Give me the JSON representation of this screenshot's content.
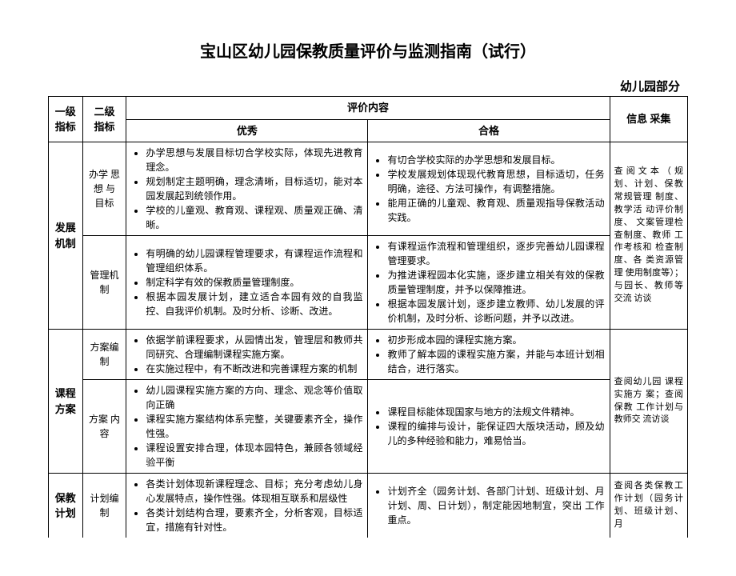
{
  "title": "宝山区幼儿园保教质量评价与监测指南（试行）",
  "subtitle": "幼儿园部分",
  "header": {
    "col1": "一级指标",
    "col2": "二级  指标",
    "eval": "评价内容",
    "excellent": "优秀",
    "pass": "合格",
    "info": "信息  采集"
  },
  "rows": {
    "r1": {
      "lvl1": "发展机制",
      "lvl2": "办学 思想 与 目标",
      "ex1": "办学思想与发展目标切合学校实际，体现先进教育理念。",
      "ex2": "规划制定主题明确，理念清晰，目标适切，能对本园发展起到统领作用。",
      "ex3": "学校的儿童观、教育观、课程观、质量观正确、清晰。",
      "pa1": "有切合学校实际的办学思想和发展目标。",
      "pa2": "学校发展规划体现现代教育思想，目标适切，任务明确，途径、方法可操作，有调整措施。",
      "pa3": "能用正确的儿童观、教育观、质量观指导保教活动实践。",
      "info": "查阅文本（规划、计划、保教常规管理 制度、教学活 动评价制度、 文案管理检 查制度、教师 工作考核和 检查制度、各 类资源管理 使用制度等）；与园长、教师等交流 访谈"
    },
    "r2": {
      "lvl2": "管理机制",
      "ex1": "有明确的幼儿园课程管理要求，有课程运作流程和管理组织体系。",
      "ex2": "制定科学有效的保教质量管理制度。",
      "ex3": "根据本园发展计划，建立适合本园有效的自我监控、自我评价机制。及时分析、诊断、改进。",
      "pa1": "有课程运作流程和管理组织，逐步完善幼儿园课程管理要求。",
      "pa2": "为推进课程园本化实施，逐步建立相关有效的保教质量管理制度，并予以保障推进。",
      "pa3": "根据本园发展计划，逐步建立教师、幼儿发展的评价机制，及时分析、诊断问题，并予以改进。"
    },
    "r3": {
      "lvl1": "课程方案",
      "lvl2": "方案编制",
      "ex1": "依据学前课程要求，从园情出发，管理层和教师共同研究、合理编制课程实施方案。",
      "ex2": "在实施过程中，有不断改进和完善课程方案的机制",
      "pa1": "初步形成本园的课程实施方案。",
      "pa2": "教师了解本园的课程实施方案，并能与本班计划相结合，进行落实。",
      "info": "查阅幼儿园 课程实施方 案；查阅保教 工作计划与 教师交 流访谈"
    },
    "r4": {
      "lvl2": "方案 内容",
      "ex1": "幼儿园课程实施方案的方向、理念、观念等价值取向正确",
      "ex2": "课程实施方案结构体系完整，关键要素齐全，操作性强。",
      "ex3": "课程设置安排合理，体现本园特色，兼顾各领域经验平衡",
      "pa1": "课程目标能体现国家与地方的法规文件精神。",
      "pa2": "课程的编排与设计，能保证四大版块活动，顾及幼儿的多种经验和能力，难易恰当。"
    },
    "r5": {
      "lvl1": "保教计划",
      "lvl2": "计划编制",
      "ex1": "各类计划体现新课程理念、目标；充分考虑幼儿身心发展特点，操作性强。体现相互联系和层级性",
      "ex2": "各类计划结构合理，要素齐全，分析客观，目标适宜，措施有针对性。",
      "pa1": "计划齐全（园务计划、各部门计划、班级计划、月计划、周、日计划），制定能因地制宜，突出 工作重点。",
      "info": "查阅各类保教工作计划（园务计划、班级计划、月"
    }
  }
}
